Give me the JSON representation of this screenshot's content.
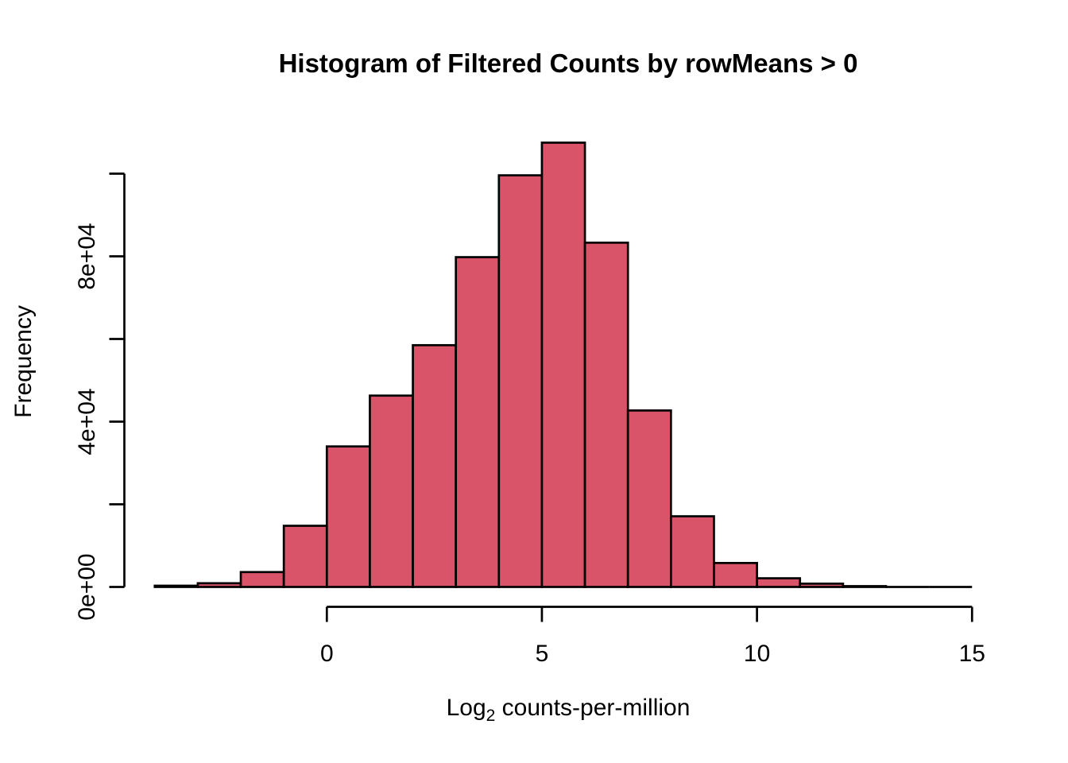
{
  "figure": {
    "title": "Histogram of Filtered Counts by rowMeans > 0",
    "ylabel": "Frequency",
    "xlabel_prefix": "Log",
    "xlabel_sub": "2",
    "xlabel_suffix": " counts-per-million",
    "colors": {
      "bar_fill": "#DA5469",
      "bar_border": "#000000",
      "axis": "#000000",
      "text": "#000000",
      "background": "#FFFFFF"
    }
  },
  "chart_data": {
    "type": "bar",
    "subtype": "histogram",
    "title": "Histogram of Filtered Counts by rowMeans > 0",
    "xlabel": "Log2 counts-per-million",
    "ylabel": "Frequency",
    "breaks": [
      -4,
      -3,
      -2,
      -1,
      0,
      1,
      2,
      3,
      4,
      5,
      6,
      7,
      8,
      9,
      10,
      11,
      12,
      13,
      14,
      15
    ],
    "counts": [
      300,
      900,
      3600,
      14800,
      34000,
      46300,
      58500,
      79800,
      99600,
      107500,
      83300,
      42700,
      17100,
      5800,
      2100,
      800,
      200,
      0,
      0
    ],
    "x_ticks": [
      {
        "value": 0,
        "label": "0"
      },
      {
        "value": 5,
        "label": "5"
      },
      {
        "value": 10,
        "label": "10"
      },
      {
        "value": 15,
        "label": "15"
      }
    ],
    "y_ticks": [
      {
        "value": 0,
        "label": "0e+00"
      },
      {
        "value": 20000,
        "label": ""
      },
      {
        "value": 40000,
        "label": "4e+04"
      },
      {
        "value": 60000,
        "label": ""
      },
      {
        "value": 80000,
        "label": "8e+04"
      },
      {
        "value": 100000,
        "label": ""
      }
    ],
    "xlim_axis": [
      0,
      15
    ],
    "ylim": [
      0,
      100000
    ],
    "grid": false,
    "legend": null
  }
}
